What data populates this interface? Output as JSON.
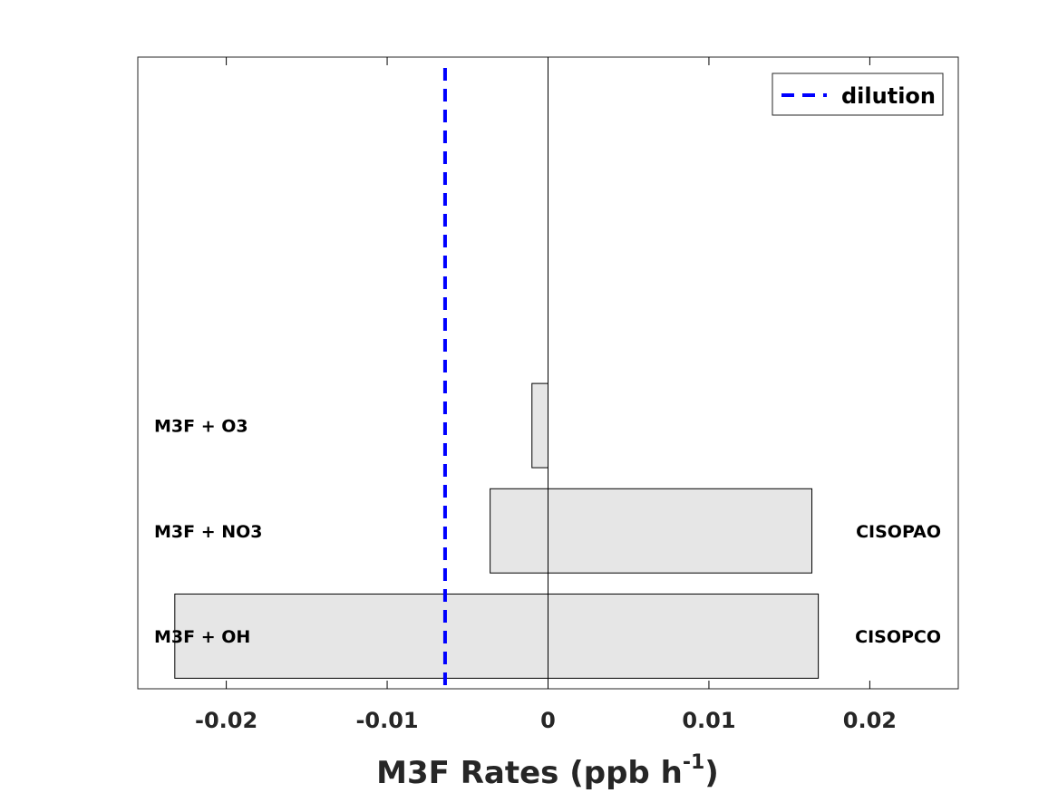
{
  "chart_data": {
    "type": "bar",
    "orientation": "horizontal",
    "stacked": true,
    "xlabel": "M3F Rates (ppb h",
    "xlabel_sup": "-1",
    "xlabel_end": ")",
    "xlim": [
      -0.0255,
      0.0255
    ],
    "xticks": [
      -0.02,
      -0.01,
      0,
      0.01,
      0.02
    ],
    "xtick_labels": [
      "-0.02",
      "-0.01",
      "0",
      "0.01",
      "0.02"
    ],
    "categories": [
      "M3F + OH",
      "M3F + NO3",
      "M3F + O3"
    ],
    "loss": [
      -0.0232,
      -0.0036,
      -0.001
    ],
    "production": [
      0.0168,
      0.0164,
      0
    ],
    "product_labels": [
      "CISOPCO",
      "CISOPAO",
      ""
    ],
    "bar_color": "#e6e6e6",
    "dilution": {
      "label": "dilution",
      "value": -0.0064,
      "color": "#0000ff",
      "style": "dashed"
    },
    "legend_position": "top-right",
    "grid": false
  }
}
